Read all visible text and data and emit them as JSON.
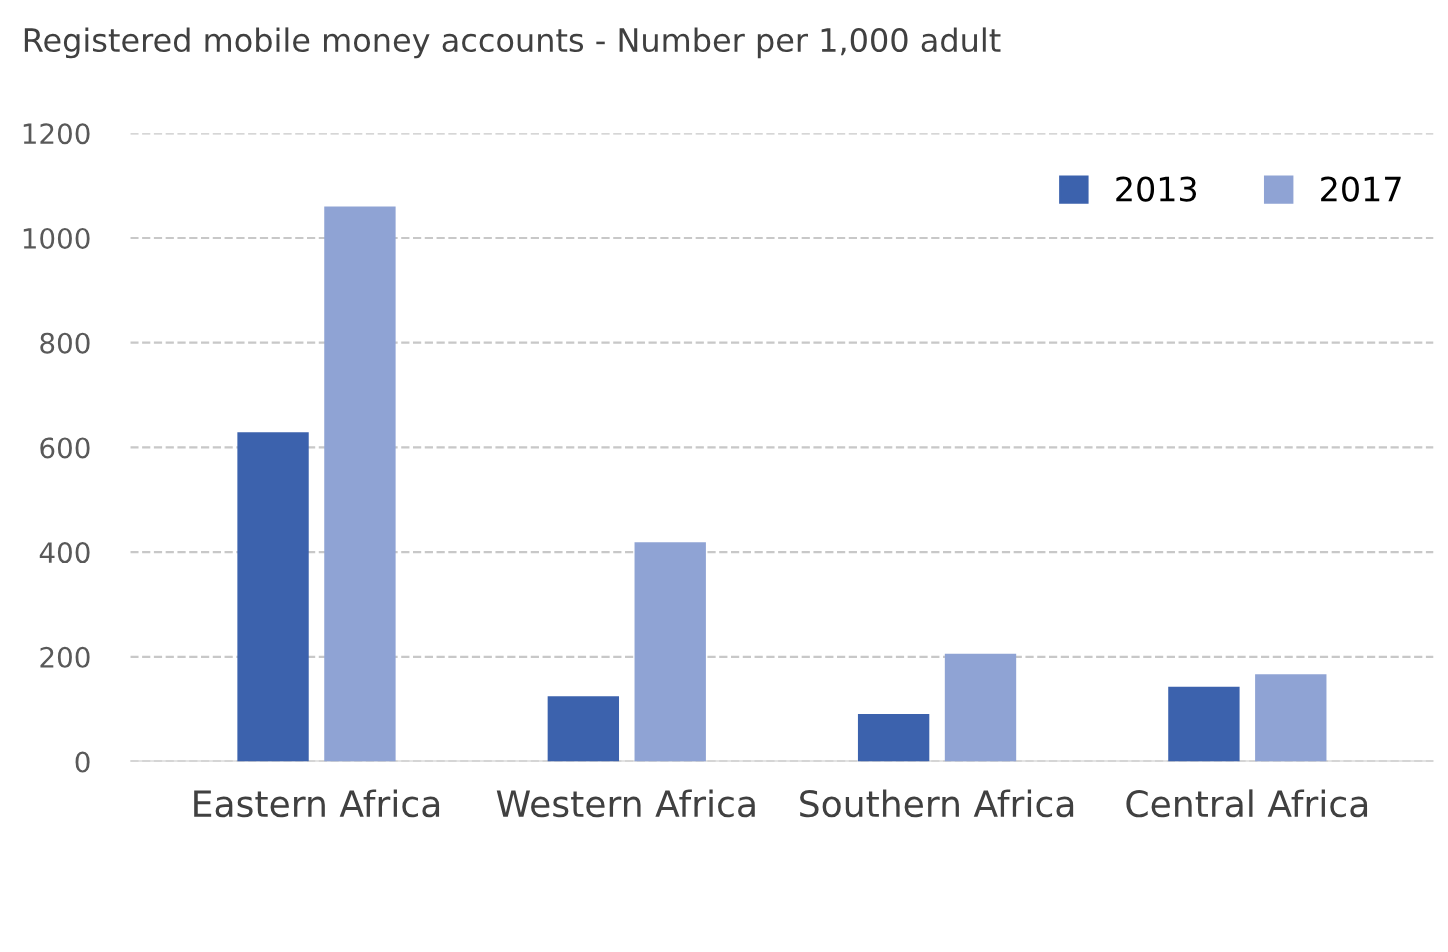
{
  "chart_data": {
    "type": "bar",
    "title": "Registered mobile money accounts - Number per 1,000 adult",
    "categories": [
      "Eastern Africa",
      "Western Africa",
      "Southern Africa",
      "Central Africa"
    ],
    "series": [
      {
        "name": "2013",
        "color": "#3c62ad",
        "values": [
          629,
          125,
          91,
          143
        ]
      },
      {
        "name": "2017",
        "color": "#8fa3d4",
        "values": [
          1060,
          419,
          206,
          167
        ]
      }
    ],
    "ylim": [
      0,
      1200
    ],
    "yticks": [
      0,
      200,
      400,
      600,
      800,
      1000,
      1200
    ],
    "grid": "y",
    "legend": "top right"
  }
}
